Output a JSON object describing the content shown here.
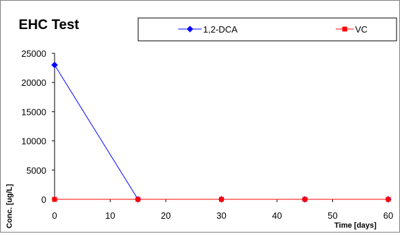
{
  "chart_data": {
    "type": "line",
    "title": "EHC Test",
    "xlabel": "Time [days]",
    "ylabel": "Conc. [ug/L]",
    "x": [
      0,
      15,
      30,
      45,
      60
    ],
    "xlim": [
      0,
      60
    ],
    "ylim": [
      0,
      25000
    ],
    "xticks": [
      0,
      10,
      20,
      30,
      40,
      50,
      60
    ],
    "yticks": [
      0,
      5000,
      10000,
      15000,
      20000,
      25000
    ],
    "grid": false,
    "legend_position": "top",
    "series": [
      {
        "name": "1,2-DCA",
        "color": "#0000ff",
        "marker": "diamond",
        "values": [
          23000,
          0,
          0,
          0,
          0
        ]
      },
      {
        "name": "VC",
        "color": "#ff0000",
        "marker": "square",
        "values": [
          0,
          0,
          0,
          0,
          0
        ]
      }
    ]
  }
}
